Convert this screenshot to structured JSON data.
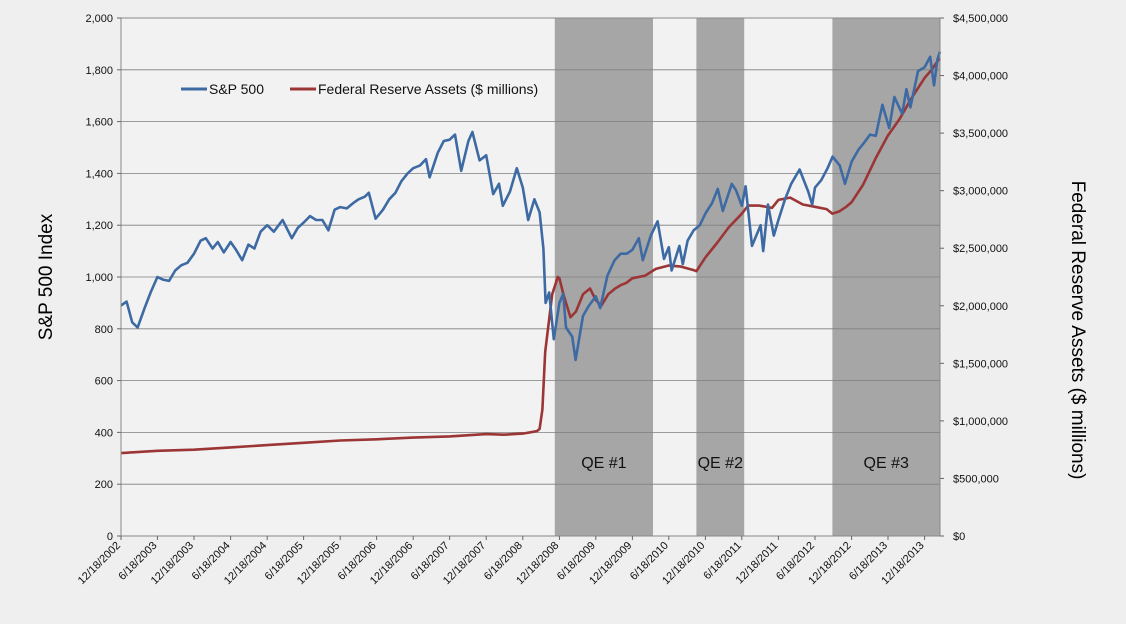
{
  "chart_data": {
    "type": "line",
    "title": "",
    "ylabel_left": "S&P 500 Index",
    "ylabel_right": "Federal Reserve Assets ($ millions)",
    "ylim_left": [
      0,
      2000
    ],
    "ylim_right": [
      0,
      4500000
    ],
    "grid": true,
    "legend_placement": "top-left",
    "x_range": [
      "2002-12-18",
      "2014-03-05"
    ],
    "yticks_left": [
      "0",
      "200",
      "400",
      "600",
      "800",
      "1,000",
      "1,200",
      "1,400",
      "1,600",
      "1,800",
      "2,000"
    ],
    "yticks_right": [
      "$0",
      "$500,000",
      "$1,000,000",
      "$1,500,000",
      "$2,000,000",
      "$2,500,000",
      "$3,000,000",
      "$3,500,000",
      "$4,000,000",
      "$4,500,000"
    ],
    "xticks": [
      {
        "date": "2002-12-18",
        "label": "12/18/2002"
      },
      {
        "date": "2003-06-18",
        "label": "6/18/2003"
      },
      {
        "date": "2003-12-18",
        "label": "12/18/2003"
      },
      {
        "date": "2004-06-18",
        "label": "6/18/2004"
      },
      {
        "date": "2004-12-18",
        "label": "12/18/2004"
      },
      {
        "date": "2005-06-18",
        "label": "6/18/2005"
      },
      {
        "date": "2005-12-18",
        "label": "12/18/2005"
      },
      {
        "date": "2006-06-18",
        "label": "6/18/2006"
      },
      {
        "date": "2006-12-18",
        "label": "12/18/2006"
      },
      {
        "date": "2007-06-18",
        "label": "6/18/2007"
      },
      {
        "date": "2007-12-18",
        "label": "12/18/2007"
      },
      {
        "date": "2008-06-18",
        "label": "6/18/2008"
      },
      {
        "date": "2008-12-18",
        "label": "12/18/2008"
      },
      {
        "date": "2009-06-18",
        "label": "6/18/2009"
      },
      {
        "date": "2009-12-18",
        "label": "12/18/2009"
      },
      {
        "date": "2010-06-18",
        "label": "6/18/2010"
      },
      {
        "date": "2010-12-18",
        "label": "12/18/2010"
      },
      {
        "date": "2011-06-18",
        "label": "6/18/2011"
      },
      {
        "date": "2011-12-18",
        "label": "12/18/2011"
      },
      {
        "date": "2012-06-18",
        "label": "6/18/2012"
      },
      {
        "date": "2012-12-18",
        "label": "12/18/2012"
      },
      {
        "date": "2013-06-18",
        "label": "6/18/2013"
      },
      {
        "date": "2013-12-18",
        "label": "12/18/2013"
      }
    ],
    "shaded_regions": [
      {
        "label": "QE #1",
        "start": "2008-11-25",
        "end": "2010-03-31"
      },
      {
        "label": "QE #2",
        "start": "2010-11-03",
        "end": "2011-06-30"
      },
      {
        "label": "QE #3",
        "start": "2012-09-13",
        "end": "2014-03-05"
      }
    ],
    "series": [
      {
        "name": "S&P 500",
        "axis": "left",
        "color": "#3e6aa4",
        "points": [
          [
            "2002-12-18",
            890
          ],
          [
            "2003-01-15",
            905
          ],
          [
            "2003-02-12",
            825
          ],
          [
            "2003-03-11",
            805
          ],
          [
            "2003-04-15",
            880
          ],
          [
            "2003-05-15",
            940
          ],
          [
            "2003-06-18",
            1000
          ],
          [
            "2003-07-15",
            990
          ],
          [
            "2003-08-15",
            985
          ],
          [
            "2003-09-15",
            1025
          ],
          [
            "2003-10-15",
            1045
          ],
          [
            "2003-11-15",
            1055
          ],
          [
            "2003-12-18",
            1090
          ],
          [
            "2004-01-20",
            1140
          ],
          [
            "2004-02-15",
            1150
          ],
          [
            "2004-03-20",
            1110
          ],
          [
            "2004-04-15",
            1135
          ],
          [
            "2004-05-15",
            1095
          ],
          [
            "2004-06-18",
            1135
          ],
          [
            "2004-07-15",
            1105
          ],
          [
            "2004-08-15",
            1065
          ],
          [
            "2004-09-15",
            1125
          ],
          [
            "2004-10-15",
            1110
          ],
          [
            "2004-11-15",
            1175
          ],
          [
            "2004-12-18",
            1200
          ],
          [
            "2005-01-20",
            1175
          ],
          [
            "2005-03-05",
            1220
          ],
          [
            "2005-04-20",
            1150
          ],
          [
            "2005-05-20",
            1190
          ],
          [
            "2005-06-18",
            1210
          ],
          [
            "2005-07-20",
            1235
          ],
          [
            "2005-08-20",
            1220
          ],
          [
            "2005-09-20",
            1220
          ],
          [
            "2005-10-20",
            1180
          ],
          [
            "2005-11-20",
            1260
          ],
          [
            "2005-12-18",
            1270
          ],
          [
            "2006-01-20",
            1265
          ],
          [
            "2006-02-20",
            1285
          ],
          [
            "2006-03-20",
            1300
          ],
          [
            "2006-04-20",
            1310
          ],
          [
            "2006-05-10",
            1325
          ],
          [
            "2006-06-13",
            1225
          ],
          [
            "2006-07-20",
            1260
          ],
          [
            "2006-08-20",
            1300
          ],
          [
            "2006-09-20",
            1325
          ],
          [
            "2006-10-20",
            1370
          ],
          [
            "2006-11-20",
            1400
          ],
          [
            "2006-12-18",
            1420
          ],
          [
            "2007-01-20",
            1430
          ],
          [
            "2007-02-20",
            1455
          ],
          [
            "2007-03-10",
            1385
          ],
          [
            "2007-04-20",
            1480
          ],
          [
            "2007-05-20",
            1525
          ],
          [
            "2007-06-18",
            1530
          ],
          [
            "2007-07-15",
            1550
          ],
          [
            "2007-08-15",
            1410
          ],
          [
            "2007-09-20",
            1525
          ],
          [
            "2007-10-10",
            1560
          ],
          [
            "2007-11-15",
            1450
          ],
          [
            "2007-12-18",
            1470
          ],
          [
            "2008-01-22",
            1320
          ],
          [
            "2008-02-20",
            1360
          ],
          [
            "2008-03-10",
            1275
          ],
          [
            "2008-04-15",
            1330
          ],
          [
            "2008-05-19",
            1420
          ],
          [
            "2008-06-18",
            1345
          ],
          [
            "2008-07-15",
            1220
          ],
          [
            "2008-08-15",
            1300
          ],
          [
            "2008-09-10",
            1250
          ],
          [
            "2008-09-29",
            1110
          ],
          [
            "2008-10-10",
            900
          ],
          [
            "2008-10-28",
            940
          ],
          [
            "2008-11-20",
            760
          ],
          [
            "2008-12-18",
            900
          ],
          [
            "2009-01-06",
            935
          ],
          [
            "2009-01-20",
            805
          ],
          [
            "2009-02-20",
            770
          ],
          [
            "2009-03-09",
            680
          ],
          [
            "2009-04-15",
            850
          ],
          [
            "2009-05-15",
            890
          ],
          [
            "2009-06-18",
            925
          ],
          [
            "2009-07-10",
            880
          ],
          [
            "2009-08-15",
            1005
          ],
          [
            "2009-09-20",
            1065
          ],
          [
            "2009-10-20",
            1090
          ],
          [
            "2009-11-20",
            1090
          ],
          [
            "2009-12-18",
            1105
          ],
          [
            "2010-01-19",
            1150
          ],
          [
            "2010-02-08",
            1065
          ],
          [
            "2010-03-20",
            1160
          ],
          [
            "2010-04-23",
            1215
          ],
          [
            "2010-05-25",
            1070
          ],
          [
            "2010-06-18",
            1115
          ],
          [
            "2010-07-02",
            1025
          ],
          [
            "2010-08-10",
            1120
          ],
          [
            "2010-08-27",
            1050
          ],
          [
            "2010-09-20",
            1140
          ],
          [
            "2010-10-20",
            1180
          ],
          [
            "2010-11-20",
            1200
          ],
          [
            "2010-12-18",
            1245
          ],
          [
            "2011-01-20",
            1285
          ],
          [
            "2011-02-18",
            1340
          ],
          [
            "2011-03-15",
            1255
          ],
          [
            "2011-04-29",
            1360
          ],
          [
            "2011-05-20",
            1335
          ],
          [
            "2011-06-18",
            1275
          ],
          [
            "2011-07-07",
            1350
          ],
          [
            "2011-08-08",
            1120
          ],
          [
            "2011-09-20",
            1200
          ],
          [
            "2011-10-03",
            1100
          ],
          [
            "2011-10-27",
            1280
          ],
          [
            "2011-11-25",
            1160
          ],
          [
            "2011-12-18",
            1220
          ],
          [
            "2012-01-20",
            1300
          ],
          [
            "2012-02-20",
            1360
          ],
          [
            "2012-04-02",
            1415
          ],
          [
            "2012-05-15",
            1330
          ],
          [
            "2012-06-04",
            1280
          ],
          [
            "2012-06-18",
            1345
          ],
          [
            "2012-07-20",
            1375
          ],
          [
            "2012-08-20",
            1420
          ],
          [
            "2012-09-14",
            1465
          ],
          [
            "2012-10-20",
            1430
          ],
          [
            "2012-11-15",
            1360
          ],
          [
            "2012-12-18",
            1445
          ],
          [
            "2013-01-20",
            1490
          ],
          [
            "2013-02-20",
            1520
          ],
          [
            "2013-03-20",
            1550
          ],
          [
            "2013-04-18",
            1545
          ],
          [
            "2013-05-21",
            1665
          ],
          [
            "2013-06-24",
            1575
          ],
          [
            "2013-07-20",
            1695
          ],
          [
            "2013-08-28",
            1630
          ],
          [
            "2013-09-18",
            1725
          ],
          [
            "2013-10-08",
            1655
          ],
          [
            "2013-11-15",
            1795
          ],
          [
            "2013-12-18",
            1810
          ],
          [
            "2014-01-15",
            1850
          ],
          [
            "2014-02-03",
            1740
          ],
          [
            "2014-02-20",
            1840
          ],
          [
            "2014-03-05",
            1870
          ]
        ]
      },
      {
        "name": "Federal Reserve Assets ($ millions)",
        "axis": "right",
        "color": "#9c3535",
        "points": [
          [
            "2002-12-18",
            720000
          ],
          [
            "2003-06-18",
            740000
          ],
          [
            "2003-12-18",
            750000
          ],
          [
            "2004-06-18",
            770000
          ],
          [
            "2004-12-18",
            790000
          ],
          [
            "2005-06-18",
            810000
          ],
          [
            "2005-12-18",
            830000
          ],
          [
            "2006-06-18",
            840000
          ],
          [
            "2006-12-18",
            855000
          ],
          [
            "2007-06-18",
            865000
          ],
          [
            "2007-12-18",
            885000
          ],
          [
            "2008-03-15",
            880000
          ],
          [
            "2008-06-18",
            890000
          ],
          [
            "2008-08-27",
            910000
          ],
          [
            "2008-09-10",
            930000
          ],
          [
            "2008-09-24",
            1100000
          ],
          [
            "2008-10-08",
            1600000
          ],
          [
            "2008-10-29",
            1900000
          ],
          [
            "2008-11-12",
            2100000
          ],
          [
            "2008-12-10",
            2250000
          ],
          [
            "2008-12-18",
            2240000
          ],
          [
            "2009-01-07",
            2100000
          ],
          [
            "2009-02-11",
            1900000
          ],
          [
            "2009-03-11",
            1950000
          ],
          [
            "2009-04-15",
            2100000
          ],
          [
            "2009-05-20",
            2150000
          ],
          [
            "2009-06-18",
            2050000
          ],
          [
            "2009-07-15",
            2000000
          ],
          [
            "2009-08-19",
            2100000
          ],
          [
            "2009-09-23",
            2150000
          ],
          [
            "2009-10-21",
            2180000
          ],
          [
            "2009-11-18",
            2200000
          ],
          [
            "2009-12-18",
            2240000
          ],
          [
            "2010-02-18",
            2260000
          ],
          [
            "2010-04-14",
            2320000
          ],
          [
            "2010-06-18",
            2350000
          ],
          [
            "2010-08-18",
            2340000
          ],
          [
            "2010-10-20",
            2310000
          ],
          [
            "2010-11-03",
            2300000
          ],
          [
            "2010-12-18",
            2420000
          ],
          [
            "2011-02-16",
            2550000
          ],
          [
            "2011-04-13",
            2680000
          ],
          [
            "2011-06-18",
            2800000
          ],
          [
            "2011-07-20",
            2870000
          ],
          [
            "2011-09-14",
            2870000
          ],
          [
            "2011-11-16",
            2850000
          ],
          [
            "2011-12-18",
            2920000
          ],
          [
            "2012-02-15",
            2940000
          ],
          [
            "2012-04-18",
            2880000
          ],
          [
            "2012-06-18",
            2860000
          ],
          [
            "2012-08-15",
            2840000
          ],
          [
            "2012-09-13",
            2800000
          ],
          [
            "2012-10-17",
            2820000
          ],
          [
            "2012-11-21",
            2860000
          ],
          [
            "2012-12-18",
            2900000
          ],
          [
            "2013-02-13",
            3050000
          ],
          [
            "2013-04-17",
            3280000
          ],
          [
            "2013-06-18",
            3480000
          ],
          [
            "2013-08-14",
            3620000
          ],
          [
            "2013-10-16",
            3810000
          ],
          [
            "2013-12-18",
            3980000
          ],
          [
            "2014-01-22",
            4050000
          ],
          [
            "2014-02-19",
            4120000
          ],
          [
            "2014-03-05",
            4150000
          ]
        ]
      }
    ]
  }
}
